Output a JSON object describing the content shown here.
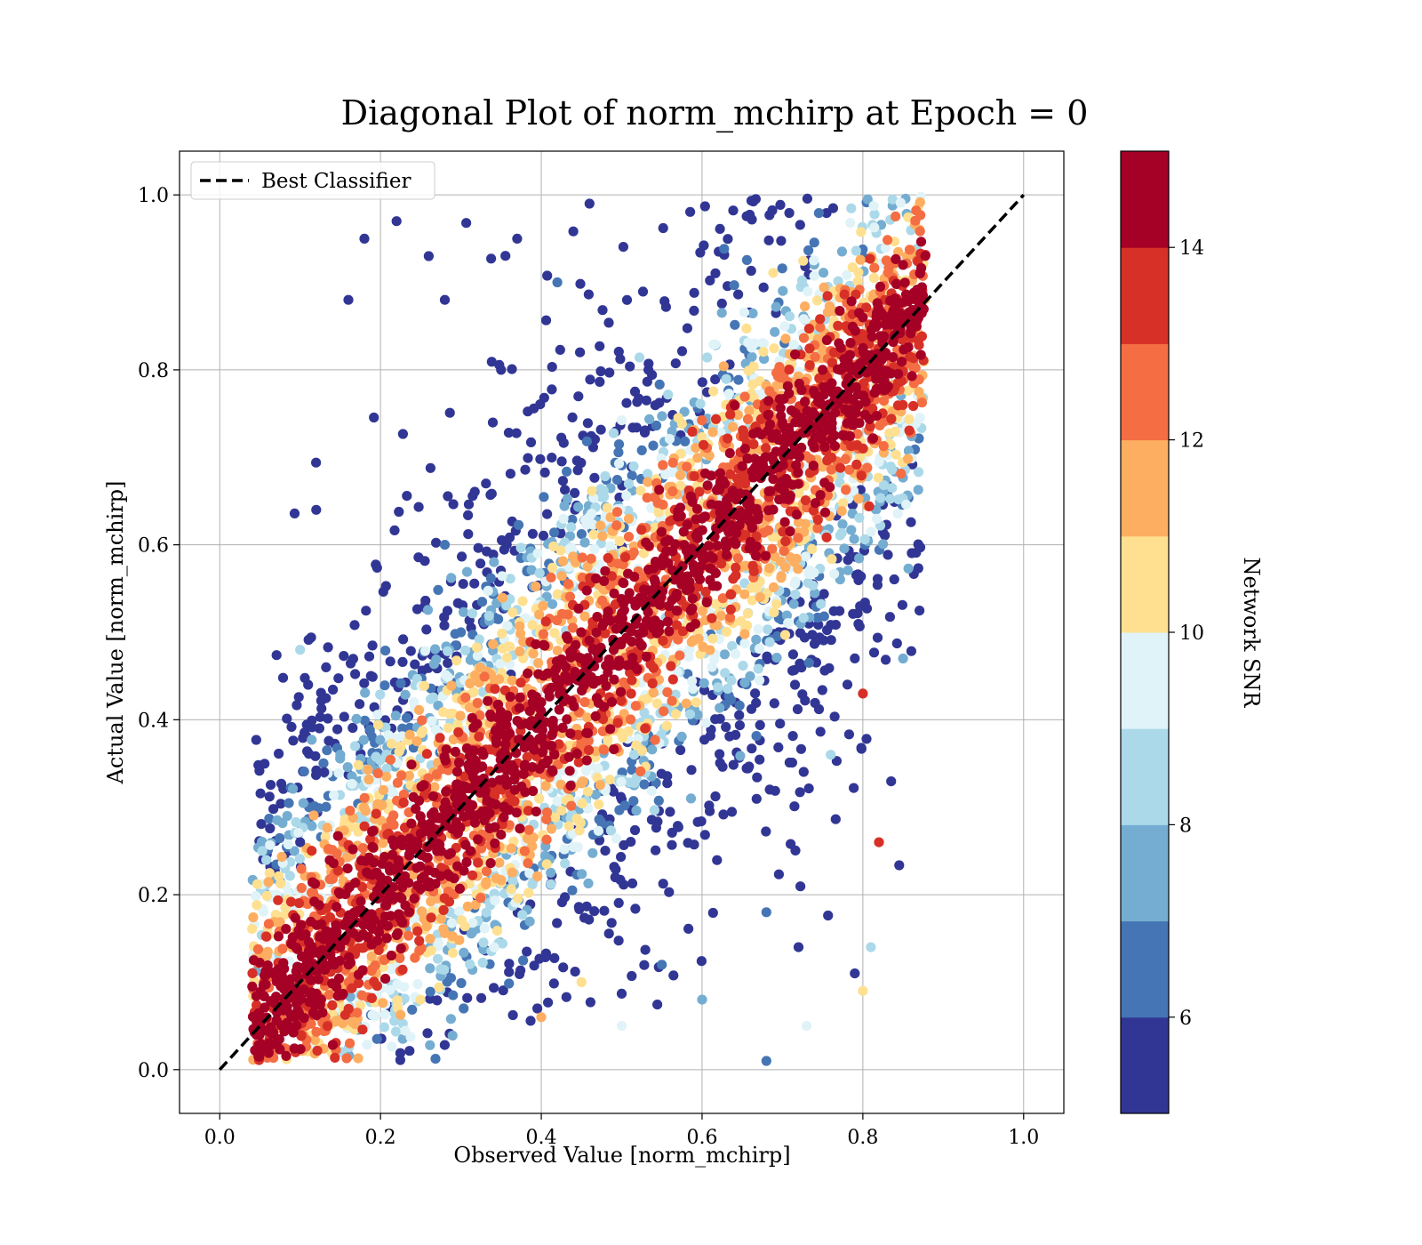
{
  "chart_data": {
    "type": "scatter",
    "title": "Diagonal Plot of norm_mchirp at Epoch = 0",
    "xlabel": "Observed Value [norm_mchirp]",
    "ylabel": "Actual Value [norm_mchirp]",
    "xlim": [
      -0.05,
      1.05
    ],
    "ylim": [
      -0.05,
      1.05
    ],
    "xticks": [
      "0.0",
      "0.2",
      "0.4",
      "0.6",
      "0.8",
      "1.0"
    ],
    "yticks": [
      "0.0",
      "0.2",
      "0.4",
      "0.6",
      "0.8",
      "1.0"
    ],
    "grid": true,
    "legend": {
      "placement": "upper-left",
      "entries": [
        "Best Classifier"
      ]
    },
    "reference_line": {
      "name": "Best Classifier",
      "x": [
        0.0,
        1.0
      ],
      "y": [
        0.0,
        1.0
      ],
      "style": "dashed",
      "color": "#000000"
    },
    "colorbar": {
      "label": "Network SNR",
      "range": [
        5,
        15
      ],
      "ticks": [
        "6",
        "8",
        "10",
        "12",
        "14"
      ],
      "colors": [
        "#313695",
        "#4575b4",
        "#74add1",
        "#abd9e9",
        "#e0f3f8",
        "#fee090",
        "#fdae61",
        "#f46d43",
        "#d73027",
        "#a50026"
      ]
    },
    "series": [
      {
        "description_points": "sampled representation of the dense scatter cloud",
        "points": [
          [
            0.05,
            0.05,
            14.5
          ],
          [
            0.1,
            0.08,
            14.8
          ],
          [
            0.15,
            0.14,
            14.6
          ],
          [
            0.2,
            0.22,
            14.9
          ],
          [
            0.25,
            0.27,
            14.7
          ],
          [
            0.3,
            0.32,
            14.8
          ],
          [
            0.35,
            0.36,
            14.9
          ],
          [
            0.4,
            0.42,
            14.8
          ],
          [
            0.45,
            0.47,
            14.9
          ],
          [
            0.5,
            0.52,
            14.9
          ],
          [
            0.55,
            0.58,
            14.8
          ],
          [
            0.6,
            0.63,
            14.9
          ],
          [
            0.65,
            0.69,
            14.9
          ],
          [
            0.7,
            0.74,
            14.8
          ],
          [
            0.75,
            0.8,
            14.9
          ],
          [
            0.8,
            0.86,
            14.9
          ],
          [
            0.85,
            0.92,
            14.8
          ],
          [
            0.18,
            0.95,
            5.2
          ],
          [
            0.16,
            0.88,
            5.1
          ],
          [
            0.22,
            0.97,
            5.3
          ],
          [
            0.1,
            0.48,
            8.4
          ],
          [
            0.12,
            0.64,
            5.4
          ],
          [
            0.11,
            0.44,
            5.2
          ],
          [
            0.35,
            0.8,
            5.5
          ],
          [
            0.42,
            0.9,
            6.6
          ],
          [
            0.3,
            0.5,
            6.8
          ],
          [
            0.28,
            0.6,
            6.2
          ],
          [
            0.55,
            0.12,
            6.4
          ],
          [
            0.6,
            0.08,
            7.6
          ],
          [
            0.5,
            0.05,
            9.6
          ],
          [
            0.45,
            0.1,
            10.6
          ],
          [
            0.4,
            0.06,
            11.4
          ],
          [
            0.68,
            0.18,
            6.0
          ],
          [
            0.72,
            0.14,
            5.5
          ],
          [
            0.76,
            0.36,
            8.8
          ],
          [
            0.8,
            0.43,
            13.5
          ],
          [
            0.82,
            0.26,
            13.6
          ],
          [
            0.85,
            0.47,
            7.0
          ],
          [
            0.68,
            0.01,
            6.8
          ],
          [
            0.73,
            0.05,
            9.4
          ],
          [
            0.8,
            0.09,
            10.2
          ],
          [
            0.81,
            0.14,
            8.5
          ],
          [
            0.79,
            0.11,
            5.3
          ],
          [
            0.15,
            0.36,
            7.2
          ],
          [
            0.13,
            0.34,
            5.5
          ],
          [
            0.1,
            0.26,
            5.4
          ],
          [
            0.28,
            0.88,
            5.2
          ],
          [
            0.26,
            0.93,
            5.4
          ],
          [
            0.37,
            0.95,
            5.3
          ],
          [
            0.46,
            0.99,
            5.2
          ]
        ]
      }
    ]
  }
}
